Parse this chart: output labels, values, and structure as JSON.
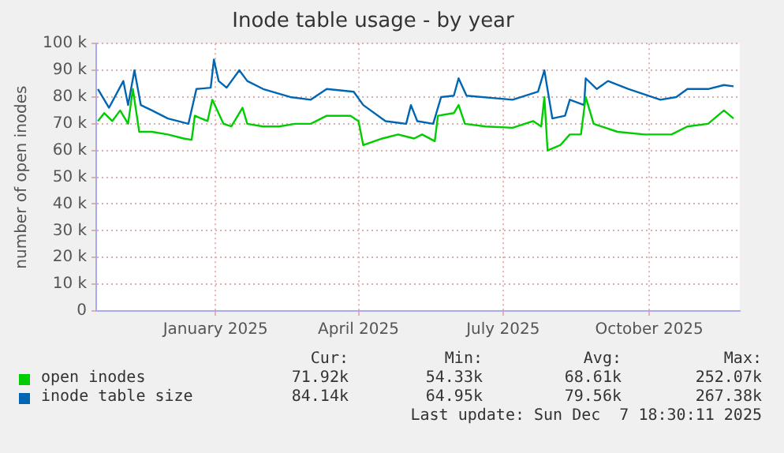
{
  "chart_data": {
    "type": "line",
    "title": "Inode table usage - by year",
    "ylabel": "number of open inodes",
    "xlim": [
      "2024-10-18",
      "2025-11-27"
    ],
    "xticks": [
      {
        "value": "2025-01-01",
        "label": "January 2025"
      },
      {
        "value": "2025-04-01",
        "label": "April 2025"
      },
      {
        "value": "2025-07-01",
        "label": "July 2025"
      },
      {
        "value": "2025-10-01",
        "label": "October 2025"
      }
    ],
    "ylim": [
      0,
      100000
    ],
    "yticks": [
      {
        "value": 0,
        "label": "0"
      },
      {
        "value": 10000,
        "label": "10 k"
      },
      {
        "value": 20000,
        "label": "20 k"
      },
      {
        "value": 30000,
        "label": "30 k"
      },
      {
        "value": 40000,
        "label": "40 k"
      },
      {
        "value": 50000,
        "label": "50 k"
      },
      {
        "value": 60000,
        "label": "60 k"
      },
      {
        "value": 70000,
        "label": "70 k"
      },
      {
        "value": 80000,
        "label": "80 k"
      },
      {
        "value": 90000,
        "label": "90 k"
      },
      {
        "value": 100000,
        "label": "100 k"
      }
    ],
    "grid": true,
    "legend": "bottom",
    "marker": "none",
    "series": [
      {
        "name": "open inodes",
        "color": "#00cc00",
        "x": [
          "2024-10-19",
          "2024-10-23",
          "2024-10-28",
          "2024-11-02",
          "2024-11-07",
          "2024-11-10",
          "2024-11-14",
          "2024-11-22",
          "2024-12-02",
          "2024-12-12",
          "2024-12-17",
          "2024-12-19",
          "2024-12-27",
          "2024-12-30",
          "2025-01-06",
          "2025-01-11",
          "2025-01-18",
          "2025-01-21",
          "2025-01-31",
          "2025-02-10",
          "2025-02-20",
          "2025-03-02",
          "2025-03-12",
          "2025-03-27",
          "2025-04-01",
          "2025-04-04",
          "2025-04-16",
          "2025-04-26",
          "2025-05-06",
          "2025-05-11",
          "2025-05-19",
          "2025-05-21",
          "2025-05-31",
          "2025-06-03",
          "2025-06-07",
          "2025-06-20",
          "2025-07-07",
          "2025-07-20",
          "2025-07-25",
          "2025-07-27",
          "2025-07-29",
          "2025-08-06",
          "2025-08-12",
          "2025-08-19",
          "2025-08-22",
          "2025-08-27",
          "2025-09-11",
          "2025-09-28",
          "2025-10-15",
          "2025-10-25",
          "2025-11-07",
          "2025-11-17",
          "2025-11-23"
        ],
        "values": [
          71000,
          74000,
          71000,
          75000,
          70000,
          83000,
          67000,
          67000,
          66000,
          64500,
          64000,
          73000,
          71000,
          79000,
          70000,
          69000,
          76000,
          70000,
          69000,
          69000,
          70000,
          70000,
          73000,
          73000,
          71000,
          62000,
          64500,
          66000,
          64500,
          66000,
          63500,
          73000,
          74000,
          77000,
          70000,
          69000,
          68500,
          71000,
          69000,
          80000,
          60000,
          62000,
          66000,
          66000,
          80000,
          70000,
          67000,
          66000,
          66000,
          69000,
          70000,
          75000,
          72000
        ]
      },
      {
        "name": "inode table size",
        "color": "#0066b3",
        "x": [
          "2024-10-19",
          "2024-10-26",
          "2024-11-04",
          "2024-11-07",
          "2024-11-11",
          "2024-11-15",
          "2024-11-22",
          "2024-12-02",
          "2024-12-15",
          "2024-12-20",
          "2024-12-29",
          "2024-12-31",
          "2025-01-03",
          "2025-01-08",
          "2025-01-16",
          "2025-01-21",
          "2025-01-31",
          "2025-02-17",
          "2025-03-02",
          "2025-03-12",
          "2025-03-29",
          "2025-04-04",
          "2025-04-18",
          "2025-05-01",
          "2025-05-04",
          "2025-05-08",
          "2025-05-18",
          "2025-05-23",
          "2025-05-31",
          "2025-06-03",
          "2025-06-08",
          "2025-07-07",
          "2025-07-23",
          "2025-07-27",
          "2025-08-01",
          "2025-08-09",
          "2025-08-12",
          "2025-08-21",
          "2025-08-22",
          "2025-08-29",
          "2025-09-05",
          "2025-09-18",
          "2025-10-08",
          "2025-10-18",
          "2025-10-25",
          "2025-11-07",
          "2025-11-17",
          "2025-11-23"
        ],
        "values": [
          83000,
          76000,
          86000,
          77000,
          90000,
          77000,
          75000,
          72000,
          70000,
          83000,
          83500,
          94000,
          86000,
          83500,
          90000,
          86000,
          83000,
          80000,
          79000,
          83000,
          82000,
          77000,
          71000,
          70000,
          77000,
          71000,
          70000,
          80000,
          80500,
          87000,
          80500,
          79000,
          82000,
          90000,
          72000,
          73000,
          79000,
          77000,
          87000,
          83000,
          86000,
          83000,
          79000,
          80000,
          83000,
          83000,
          84500,
          84000
        ]
      }
    ],
    "annotations": [
      "Cur:",
      "Min:",
      "Avg:",
      "Max:",
      "71.92k",
      "54.33k",
      "68.61k",
      "252.07k",
      "84.14k",
      "64.95k",
      "79.56k",
      "267.38k",
      "Last update: Sun Dec  7 18:30:11 2025"
    ]
  }
}
